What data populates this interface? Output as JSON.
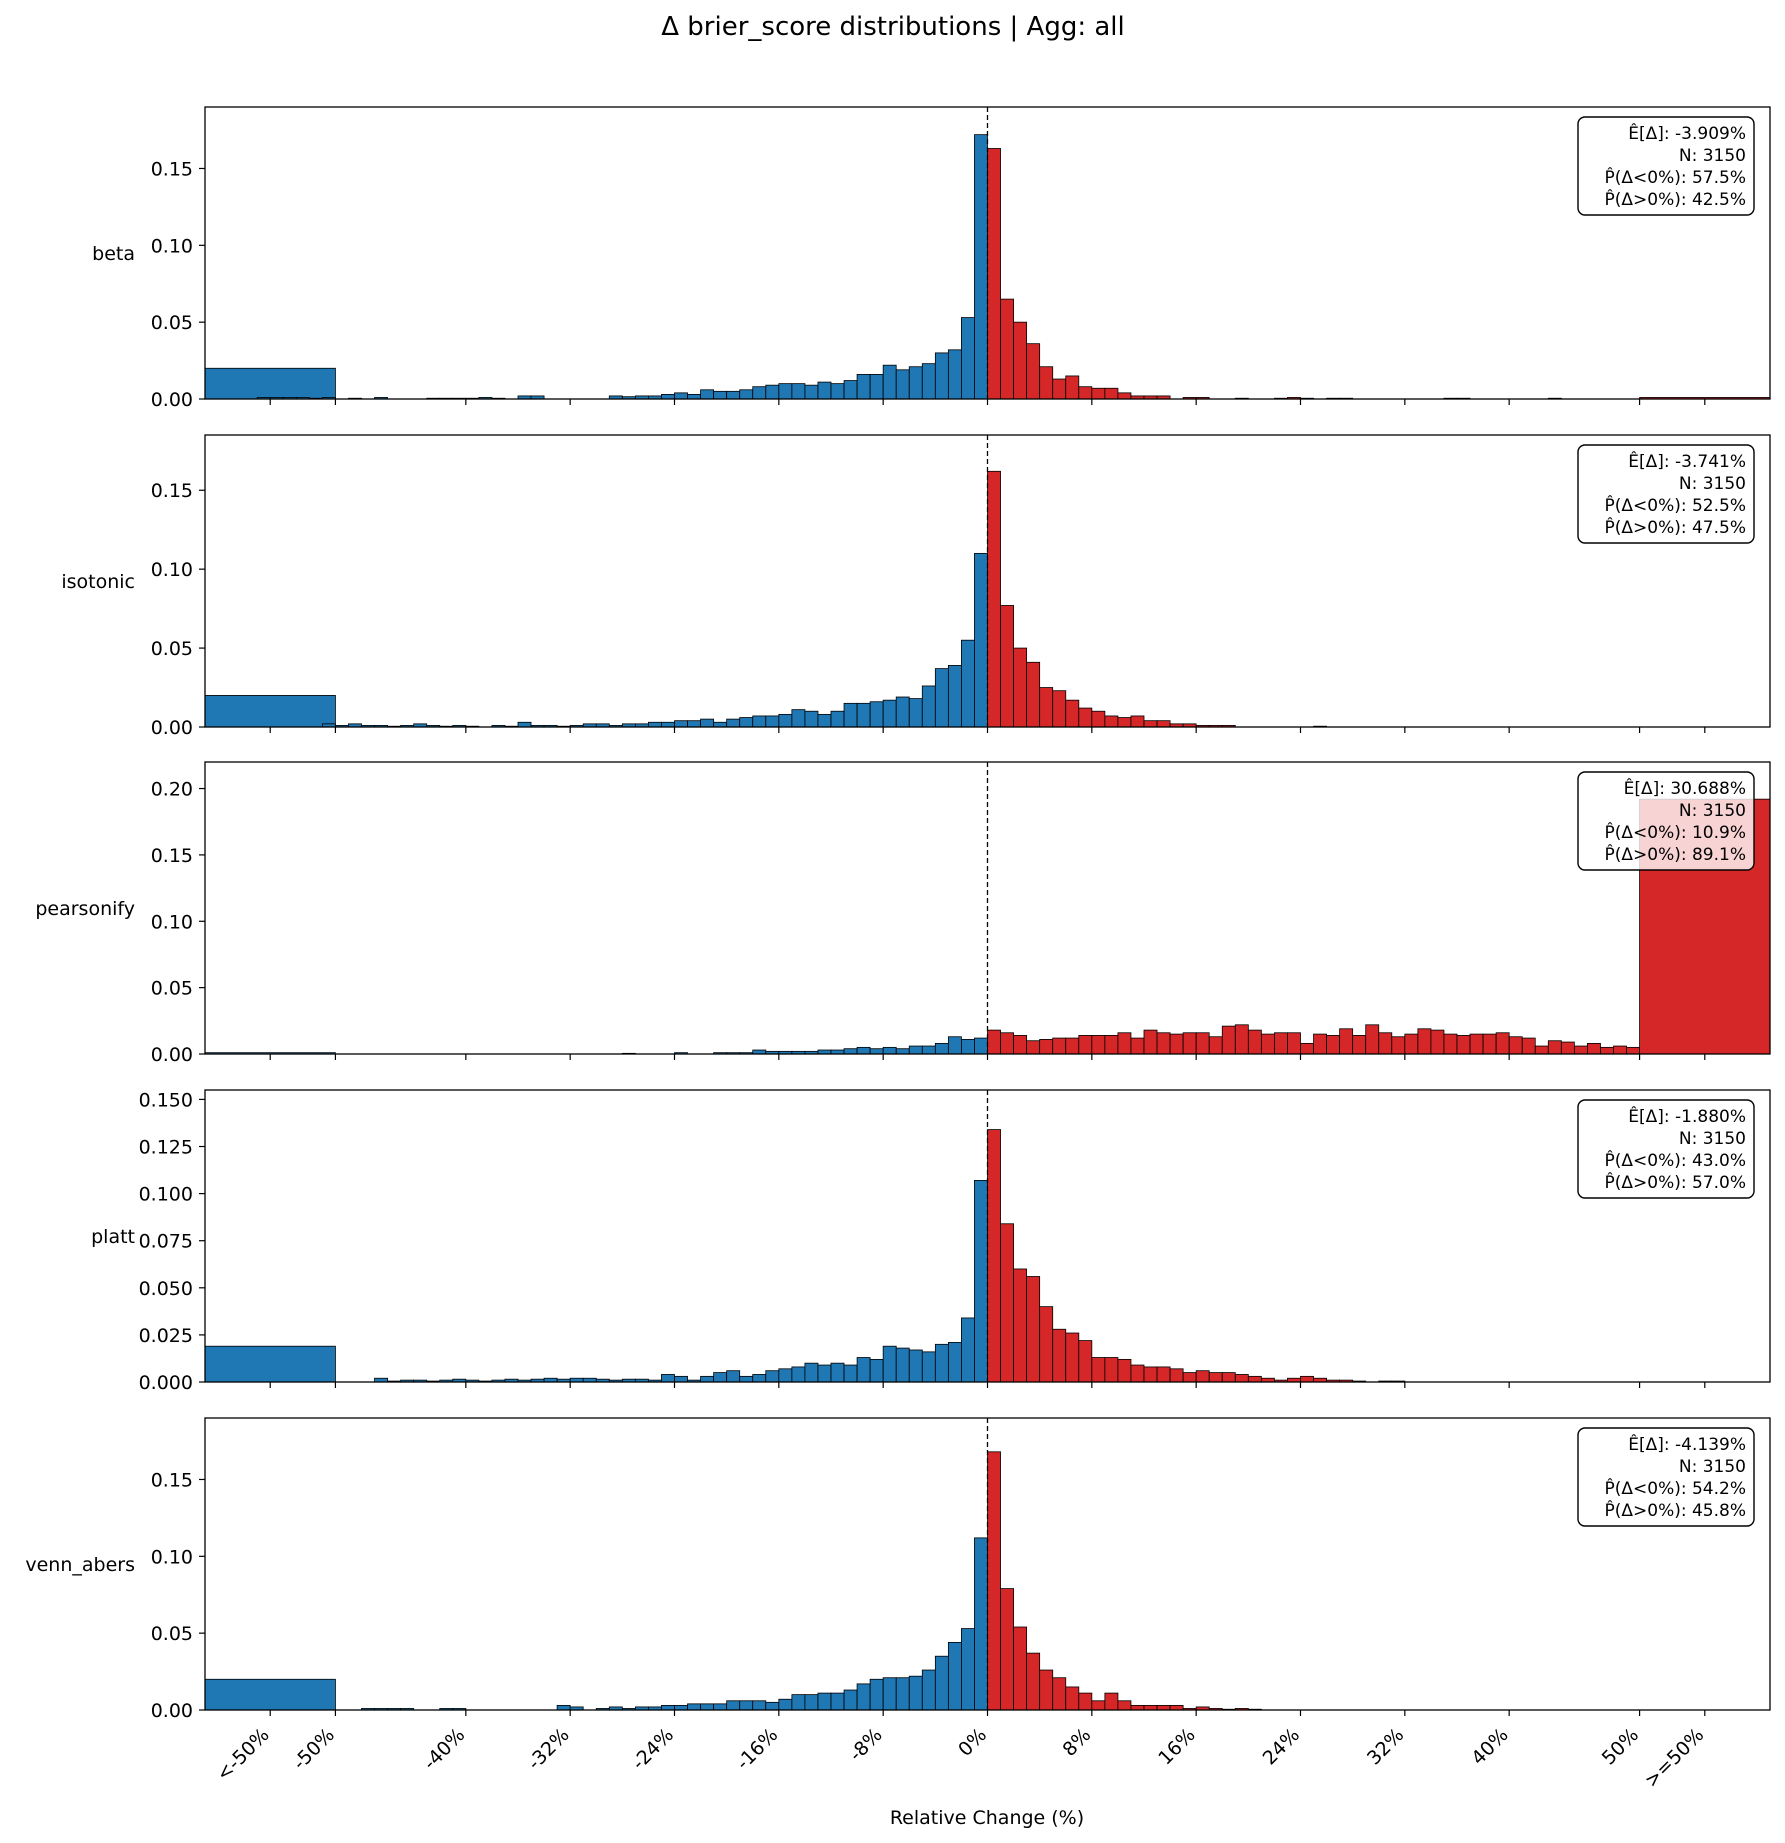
{
  "title": "Δ brier_score distributions | Agg: all",
  "xlabel": "Relative Change (%)",
  "colors": {
    "negative": "#1f77b4",
    "positive": "#d62728",
    "edge": "#000000",
    "zero_line": "#000000"
  },
  "chart_data": {
    "type": "bar",
    "x_tick_labels": [
      "<-50%",
      "-50%",
      "-40%",
      "-32%",
      "-24%",
      "-16%",
      "-8%",
      "0%",
      "8%",
      "16%",
      "24%",
      "32%",
      "40%",
      "50%",
      ">=50%"
    ],
    "x_tick_values": [
      -55,
      -50,
      -40,
      -32,
      -24,
      -16,
      -8,
      0,
      8,
      16,
      24,
      32,
      40,
      50,
      55
    ],
    "x_range": [
      -60,
      60
    ],
    "bin_width": 1,
    "overflow_bins": {
      "low": [
        -60,
        -50
      ],
      "high": [
        50,
        60
      ]
    },
    "subplots": [
      {
        "name": "beta",
        "ylim": [
          0,
          0.19
        ],
        "yticks": [
          0.0,
          0.05,
          0.1,
          0.15
        ],
        "ytick_labels": [
          "0.00",
          "0.05",
          "0.10",
          "0.15"
        ],
        "stats": [
          "Ê[Δ]: -3.909%",
          "N: 3150",
          "P̂(Δ<0%): 57.5%",
          "P̂(Δ>0%): 42.5%"
        ],
        "underflow": 0.02,
        "overflow": 0.001,
        "neg": [
          0.001,
          0.001,
          0.001,
          0.001,
          0.0005,
          0.001,
          0,
          0.0005,
          0,
          0.001,
          0,
          0,
          0,
          0.0005,
          0.0005,
          0.0005,
          0.0005,
          0.001,
          0.0005,
          0,
          0.002,
          0.002,
          0,
          0,
          0,
          0,
          0,
          0.002,
          0.0015,
          0.002,
          0.002,
          0.003,
          0.004,
          0.003,
          0.006,
          0.005,
          0.005,
          0.006,
          0.008,
          0.009,
          0.01,
          0.01,
          0.009,
          0.011,
          0.01,
          0.012,
          0.016,
          0.016,
          0.022,
          0.019,
          0.021,
          0.023,
          0.03,
          0.032,
          0.053,
          0.172
        ],
        "pos": [
          0.163,
          0.065,
          0.05,
          0.036,
          0.021,
          0.013,
          0.015,
          0.008,
          0.007,
          0.007,
          0.004,
          0.002,
          0.002,
          0.002,
          0,
          0.001,
          0.001,
          0,
          0,
          0.0005,
          0,
          0,
          0.0005,
          0.001,
          0.0005,
          0,
          0.0005,
          0.0005,
          0,
          0,
          0,
          0,
          0,
          0,
          0,
          0.0005,
          0.0005,
          0,
          0,
          0,
          0,
          0,
          0,
          0.0005,
          0,
          0,
          0,
          0,
          0,
          0
        ]
      },
      {
        "name": "isotonic",
        "ylim": [
          0,
          0.185
        ],
        "yticks": [
          0.0,
          0.05,
          0.1,
          0.15
        ],
        "ytick_labels": [
          "0.00",
          "0.05",
          "0.10",
          "0.15"
        ],
        "stats": [
          "Ê[Δ]: -3.741%",
          "N: 3150",
          "P̂(Δ<0%): 52.5%",
          "P̂(Δ>0%): 47.5%"
        ],
        "underflow": 0.02,
        "overflow": 0,
        "neg": [
          0.002,
          0.001,
          0.002,
          0.001,
          0.001,
          0.0005,
          0.001,
          0.002,
          0.001,
          0.0005,
          0.001,
          0.0005,
          0,
          0.001,
          0.0005,
          0.003,
          0.001,
          0.001,
          0.0005,
          0.001,
          0.002,
          0.002,
          0.001,
          0.002,
          0.002,
          0.003,
          0.003,
          0.004,
          0.004,
          0.005,
          0.003,
          0.005,
          0.006,
          0.007,
          0.007,
          0.008,
          0.011,
          0.01,
          0.008,
          0.01,
          0.015,
          0.015,
          0.016,
          0.017,
          0.019,
          0.018,
          0.026,
          0.037,
          0.039,
          0.055,
          0.11
        ],
        "pos": [
          0.162,
          0.077,
          0.05,
          0.041,
          0.025,
          0.023,
          0.017,
          0.012,
          0.01,
          0.007,
          0.006,
          0.007,
          0.004,
          0.004,
          0.002,
          0.002,
          0.001,
          0.001,
          0.001,
          0,
          0,
          0,
          0,
          0,
          0,
          0.0005,
          0,
          0,
          0,
          0,
          0,
          0,
          0,
          0,
          0,
          0,
          0,
          0,
          0,
          0,
          0,
          0,
          0,
          0,
          0,
          0,
          0,
          0,
          0,
          0
        ]
      },
      {
        "name": "pearsonify",
        "ylim": [
          0,
          0.22
        ],
        "yticks": [
          0.0,
          0.05,
          0.1,
          0.15,
          0.2
        ],
        "ytick_labels": [
          "0.00",
          "0.05",
          "0.10",
          "0.15",
          "0.20"
        ],
        "stats": [
          "Ê[Δ]: 30.688%",
          "N: 3150",
          "P̂(Δ<0%): 10.9%",
          "P̂(Δ>0%): 89.1%"
        ],
        "underflow": 0.001,
        "overflow": 0.192,
        "neg": [
          0,
          0,
          0,
          0,
          0,
          0,
          0,
          0,
          0,
          0,
          0,
          0,
          0,
          0,
          0,
          0,
          0,
          0,
          0,
          0,
          0,
          0,
          0,
          0.0005,
          0,
          0,
          0,
          0.001,
          0,
          0,
          0.001,
          0.001,
          0.001,
          0.003,
          0.002,
          0.002,
          0.002,
          0.002,
          0.003,
          0.003,
          0.004,
          0.005,
          0.004,
          0.005,
          0.004,
          0.006,
          0.006,
          0.008,
          0.013,
          0.011,
          0.012
        ],
        "pos": [
          0.018,
          0.016,
          0.014,
          0.01,
          0.011,
          0.012,
          0.012,
          0.014,
          0.014,
          0.014,
          0.016,
          0.012,
          0.018,
          0.016,
          0.015,
          0.016,
          0.016,
          0.013,
          0.021,
          0.022,
          0.018,
          0.015,
          0.016,
          0.016,
          0.008,
          0.015,
          0.014,
          0.019,
          0.014,
          0.022,
          0.016,
          0.013,
          0.015,
          0.019,
          0.018,
          0.015,
          0.014,
          0.015,
          0.015,
          0.016,
          0.013,
          0.012,
          0.006,
          0.01,
          0.009,
          0.006,
          0.008,
          0.005,
          0.006,
          0.005
        ]
      },
      {
        "name": "platt",
        "ylim": [
          0,
          0.155
        ],
        "yticks": [
          0.0,
          0.025,
          0.05,
          0.075,
          0.1,
          0.125,
          0.15
        ],
        "ytick_labels": [
          "0.000",
          "0.025",
          "0.050",
          "0.075",
          "0.100",
          "0.125",
          "0.150"
        ],
        "stats": [
          "Ê[Δ]: -1.880%",
          "N: 3150",
          "P̂(Δ<0%): 43.0%",
          "P̂(Δ>0%): 57.0%"
        ],
        "underflow": 0.019,
        "overflow": 0,
        "neg": [
          0,
          0.002,
          0.0005,
          0.001,
          0.001,
          0.0005,
          0.001,
          0.0015,
          0.001,
          0.0005,
          0.001,
          0.0015,
          0.001,
          0.0015,
          0.002,
          0.0015,
          0.002,
          0.002,
          0.0015,
          0.001,
          0.0015,
          0.0015,
          0.001,
          0.004,
          0.003,
          0.001,
          0.003,
          0.005,
          0.006,
          0.003,
          0.004,
          0.006,
          0.007,
          0.008,
          0.01,
          0.009,
          0.01,
          0.009,
          0.013,
          0.012,
          0.019,
          0.018,
          0.017,
          0.016,
          0.02,
          0.021,
          0.034,
          0.107
        ],
        "pos": [
          0.134,
          0.084,
          0.06,
          0.056,
          0.04,
          0.028,
          0.026,
          0.022,
          0.013,
          0.013,
          0.012,
          0.009,
          0.008,
          0.008,
          0.007,
          0.005,
          0.006,
          0.005,
          0.005,
          0.004,
          0.003,
          0.002,
          0.001,
          0.002,
          0.003,
          0.002,
          0.001,
          0.001,
          0.0005,
          0,
          0.0005,
          0.0005,
          0,
          0,
          0,
          0,
          0,
          0,
          0,
          0,
          0,
          0,
          0,
          0,
          0,
          0,
          0,
          0,
          0,
          0
        ]
      },
      {
        "name": "venn_abers",
        "ylim": [
          0,
          0.19
        ],
        "yticks": [
          0.0,
          0.05,
          0.1,
          0.15
        ],
        "ytick_labels": [
          "0.00",
          "0.05",
          "0.10",
          "0.15"
        ],
        "stats": [
          "Ê[Δ]: -4.139%",
          "N: 3150",
          "P̂(Δ<0%): 54.2%",
          "P̂(Δ>0%): 45.8%"
        ],
        "underflow": 0.02,
        "overflow": 0,
        "neg": [
          0.001,
          0.001,
          0.001,
          0.001,
          0,
          0,
          0.001,
          0.001,
          0,
          0,
          0,
          0,
          0,
          0,
          0,
          0.003,
          0.002,
          0,
          0.001,
          0.002,
          0.001,
          0.002,
          0.002,
          0.003,
          0.003,
          0.004,
          0.004,
          0.004,
          0.006,
          0.006,
          0.006,
          0.005,
          0.007,
          0.01,
          0.01,
          0.011,
          0.011,
          0.013,
          0.017,
          0.02,
          0.021,
          0.021,
          0.022,
          0.026,
          0.035,
          0.044,
          0.053,
          0.112
        ],
        "pos": [
          0.168,
          0.079,
          0.054,
          0.037,
          0.026,
          0.021,
          0.015,
          0.011,
          0.006,
          0.011,
          0.006,
          0.003,
          0.003,
          0.003,
          0.003,
          0.001,
          0.002,
          0.001,
          0.0005,
          0.001,
          0.0005,
          0,
          0,
          0,
          0,
          0,
          0,
          0,
          0,
          0,
          0,
          0,
          0,
          0,
          0,
          0,
          0,
          0,
          0,
          0,
          0,
          0,
          0,
          0,
          0,
          0,
          0,
          0,
          0,
          0
        ]
      }
    ]
  }
}
